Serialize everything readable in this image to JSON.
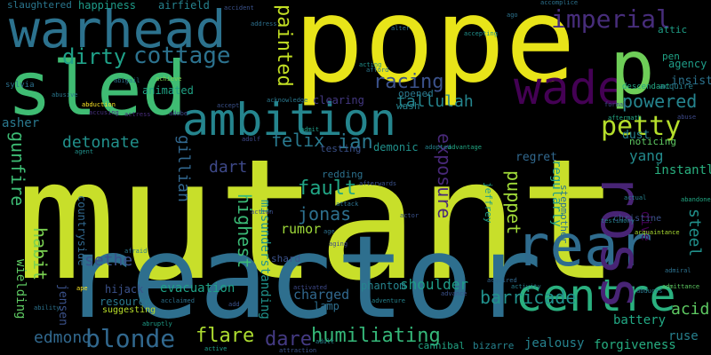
{
  "words": [
    {
      "text": "mutant",
      "color": "#c8df2a"
    },
    {
      "text": "reactor",
      "color": "#2e6f8e"
    },
    {
      "text": "pope",
      "color": "#e8e419"
    },
    {
      "text": "sled",
      "color": "#3fbc73"
    },
    {
      "text": "warhead",
      "color": "#2c728e"
    },
    {
      "text": "ambition",
      "color": "#25858e"
    },
    {
      "text": "centre",
      "color": "#2ab07f"
    },
    {
      "text": "wade",
      "color": "#440154"
    },
    {
      "text": "p",
      "color": "#6ece58"
    },
    {
      "text": "rear",
      "color": "#2f6c8e"
    },
    {
      "text": "ross",
      "color": "#482475"
    },
    {
      "text": "cottage",
      "color": "#2c728e"
    },
    {
      "text": "imperial",
      "color": "#472d7b"
    },
    {
      "text": "dirty",
      "color": "#1fa188"
    },
    {
      "text": "petty",
      "color": "#b5de2b"
    },
    {
      "text": "blonde",
      "color": "#31688e"
    },
    {
      "text": "racing",
      "color": "#3b528b"
    },
    {
      "text": "painted",
      "color": "#c2df23"
    },
    {
      "text": "powered",
      "color": "#25848e"
    },
    {
      "text": "barricade",
      "color": "#21918c"
    },
    {
      "text": "humiliating",
      "color": "#35b779"
    },
    {
      "text": "exposure",
      "color": "#482878"
    },
    {
      "text": "puppet",
      "color": "#a0da39"
    },
    {
      "text": "fault",
      "color": "#21a685"
    },
    {
      "text": "jonas",
      "color": "#2d708e"
    },
    {
      "text": "ian",
      "color": "#2a788e"
    },
    {
      "text": "felix",
      "color": "#29798e"
    },
    {
      "text": "flare",
      "color": "#addc30"
    },
    {
      "text": "dare",
      "color": "#443a83"
    },
    {
      "text": "gunfire",
      "color": "#3dbc74"
    },
    {
      "text": "habit",
      "color": "#7ad151"
    },
    {
      "text": "detonate",
      "color": "#21918c"
    },
    {
      "text": "highest",
      "color": "#3aba76"
    },
    {
      "text": "tallulah",
      "color": "#25858e"
    },
    {
      "text": "gillian",
      "color": "#31678e"
    },
    {
      "text": "edmond",
      "color": "#31688e"
    },
    {
      "text": "steel",
      "color": "#21918c"
    },
    {
      "text": "dart",
      "color": "#3e4989"
    },
    {
      "text": "sethe",
      "color": "#3b528b"
    },
    {
      "text": "acid",
      "color": "#5ec962"
    },
    {
      "text": "yang",
      "color": "#238a8d"
    },
    {
      "text": "shoulder",
      "color": "#1f9e89"
    },
    {
      "text": "misunderstanding",
      "color": "#20928c"
    },
    {
      "text": "rumor",
      "color": "#9fda3a"
    },
    {
      "text": "charged",
      "color": "#31688e"
    },
    {
      "text": "evacuation",
      "color": "#1fa287"
    },
    {
      "text": "regret",
      "color": "#31688e"
    },
    {
      "text": "regularly",
      "color": "#1f9e89"
    },
    {
      "text": "dive",
      "color": "#440154"
    },
    {
      "text": "battery",
      "color": "#22a884"
    },
    {
      "text": "forgiveness",
      "color": "#26ad81"
    },
    {
      "text": "jealousy",
      "color": "#26828e"
    },
    {
      "text": "ruse",
      "color": "#27808e"
    },
    {
      "text": "instantly",
      "color": "#29af7f"
    },
    {
      "text": "jensen",
      "color": "#3b528b"
    },
    {
      "text": "wielding",
      "color": "#5ec962"
    },
    {
      "text": "dust",
      "color": "#26828e"
    },
    {
      "text": "insist",
      "color": "#2c738e"
    },
    {
      "text": "agency",
      "color": "#1f9e89"
    },
    {
      "text": "pen",
      "color": "#20a386"
    },
    {
      "text": "attic",
      "color": "#1fa088"
    },
    {
      "text": "airfield",
      "color": "#26828e"
    },
    {
      "text": "happiness",
      "color": "#1e9c89"
    },
    {
      "text": "slaughtered",
      "color": "#2a768e"
    },
    {
      "text": "animated",
      "color": "#20a386"
    },
    {
      "text": "asher",
      "color": "#2a788e"
    },
    {
      "text": "hijack",
      "color": "#3b528b"
    },
    {
      "text": "resource",
      "color": "#2a788e"
    },
    {
      "text": "countryside",
      "color": "#31688e"
    },
    {
      "text": "phantom",
      "color": "#25848e"
    },
    {
      "text": "lamp",
      "color": "#2e6e8e"
    },
    {
      "text": "demonic",
      "color": "#21918c"
    },
    {
      "text": "testing",
      "color": "#3b528b"
    },
    {
      "text": "clearing",
      "color": "#443983"
    },
    {
      "text": "wash",
      "color": "#26828e"
    },
    {
      "text": "opened",
      "color": "#2a788e"
    },
    {
      "text": "redding",
      "color": "#2c718e"
    },
    {
      "text": "jeffrey",
      "color": "#1f9e89"
    },
    {
      "text": "bizarre",
      "color": "#26828e"
    },
    {
      "text": "cannibal",
      "color": "#21a585"
    },
    {
      "text": "acquire",
      "color": "#277f8e"
    },
    {
      "text": "descendant",
      "color": "#22a785"
    },
    {
      "text": "christine",
      "color": "#3b528b"
    },
    {
      "text": "stepmother",
      "color": "#2d708e"
    },
    {
      "text": "suggesting",
      "color": "#b8de29"
    },
    {
      "text": "noticing",
      "color": "#5ec962"
    },
    {
      "text": "shard",
      "color": "#3b528b"
    },
    {
      "text": "sylvia",
      "color": "#2d708e"
    },
    {
      "text": "abduction",
      "color": "#fde725"
    },
    {
      "text": "accusing",
      "color": "#46307e"
    },
    {
      "text": "actress",
      "color": "#472c7a"
    },
    {
      "text": "adopted",
      "color": "#25838e"
    },
    {
      "text": "adventure",
      "color": "#25838e"
    },
    {
      "text": "attack",
      "color": "#2c718e"
    },
    {
      "text": "activated",
      "color": "#3e4989"
    },
    {
      "text": "advantage",
      "color": "#22a884"
    },
    {
      "text": "actual",
      "color": "#26828e"
    },
    {
      "text": "acquaintance",
      "color": "#aadc32"
    },
    {
      "text": "abandoned",
      "color": "#22a884"
    },
    {
      "text": "admiral",
      "color": "#2d718e"
    },
    {
      "text": "admittance",
      "color": "#5ec962"
    },
    {
      "text": "abducts",
      "color": "#2a768e"
    },
    {
      "text": "abuse",
      "color": "#3e4a89"
    },
    {
      "text": "alter",
      "color": "#2c738e"
    },
    {
      "text": "acting",
      "color": "#21918c"
    },
    {
      "text": "afford",
      "color": "#2a788e"
    },
    {
      "text": "abruptly",
      "color": "#1f9e89"
    },
    {
      "text": "achieve",
      "color": "#7ad151"
    },
    {
      "text": "abusive",
      "color": "#2a778e"
    },
    {
      "text": "accepting",
      "color": "#21918c"
    },
    {
      "text": "aging",
      "color": "#3e4989"
    },
    {
      "text": "acquired",
      "color": "#31688e"
    },
    {
      "text": "activity",
      "color": "#277e8e"
    },
    {
      "text": "afterwards",
      "color": "#3b528b"
    },
    {
      "text": "actor",
      "color": "#3b528b"
    },
    {
      "text": "ago",
      "color": "#2c738e"
    },
    {
      "text": "testimony",
      "color": "#26818e"
    },
    {
      "text": "formal",
      "color": "#3e4989"
    },
    {
      "text": "afraid",
      "color": "#2a788e"
    },
    {
      "text": "add",
      "color": "#3b528b"
    },
    {
      "text": "advance",
      "color": "#3b528b"
    },
    {
      "text": "attraction",
      "color": "#3b528b"
    },
    {
      "text": "active",
      "color": "#1f9e89"
    },
    {
      "text": "adult",
      "color": "#26818e"
    },
    {
      "text": "ape",
      "color": "#fde725"
    },
    {
      "text": "address",
      "color": "#2d708e"
    },
    {
      "text": "accomplice",
      "color": "#2c728e"
    },
    {
      "text": "acknowledge",
      "color": "#2a788e"
    },
    {
      "text": "acclaimed",
      "color": "#2d718e"
    },
    {
      "text": "aftermath",
      "color": "#22a884"
    },
    {
      "text": "agent",
      "color": "#21918c"
    },
    {
      "text": "accident",
      "color": "#3b528b"
    },
    {
      "text": "adobe",
      "color": "#3e4a89"
    },
    {
      "text": "ability",
      "color": "#2c728e"
    },
    {
      "text": "action",
      "color": "#3e4989"
    },
    {
      "text": "age",
      "color": "#2d718e"
    },
    {
      "text": "adolf",
      "color": "#3e4989"
    },
    {
      "text": "accept",
      "color": "#3b528b"
    },
    {
      "text": "abigail",
      "color": "#2d708e"
    },
    {
      "text": "admit",
      "color": "#1f9e89"
    }
  ]
}
